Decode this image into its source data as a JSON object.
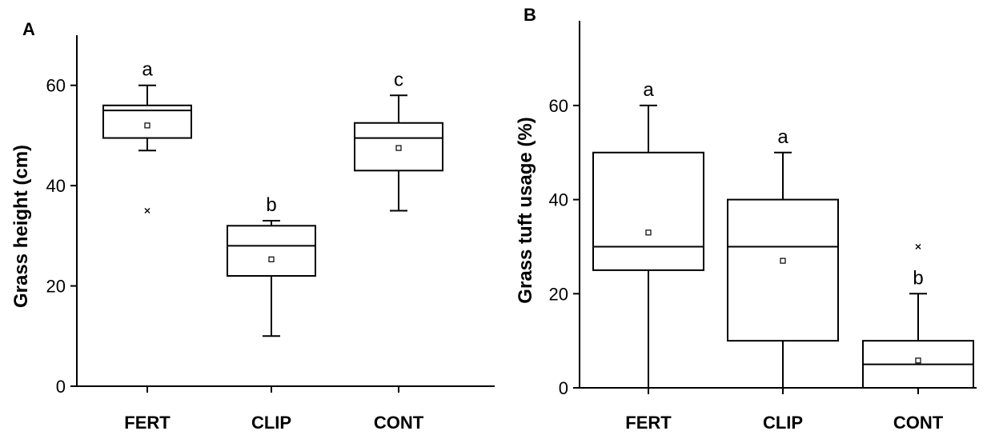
{
  "chart_data": [
    {
      "type": "box",
      "panel": "A",
      "ylabel": "Grass height (cm)",
      "xlabel": "",
      "ylim": [
        0,
        70
      ],
      "yticks": [
        0,
        20,
        40,
        60
      ],
      "grid": false,
      "categories": [
        "FERT",
        "CLIP",
        "CONT"
      ],
      "boxes": [
        {
          "category": "FERT",
          "whisker_low": 47,
          "q1": 49.5,
          "median": 55,
          "q3": 56,
          "whisker_high": 60,
          "mean": 52,
          "outliers": [
            35
          ],
          "letter": "a"
        },
        {
          "category": "CLIP",
          "whisker_low": 10,
          "q1": 22,
          "median": 28,
          "q3": 32,
          "whisker_high": 33,
          "mean": 25.3,
          "outliers": [],
          "letter": "b"
        },
        {
          "category": "CONT",
          "whisker_low": 35,
          "q1": 43,
          "median": 49.5,
          "q3": 52.5,
          "whisker_high": 58,
          "mean": 47.5,
          "outliers": [],
          "letter": "c"
        }
      ]
    },
    {
      "type": "box",
      "panel": "B",
      "ylabel": "Grass tuft usage (%)",
      "xlabel": "",
      "ylim": [
        0,
        78
      ],
      "yticks": [
        0,
        20,
        40,
        60
      ],
      "grid": false,
      "categories": [
        "FERT",
        "CLIP",
        "CONT"
      ],
      "boxes": [
        {
          "category": "FERT",
          "whisker_low": 0,
          "q1": 25,
          "median": 30,
          "q3": 50,
          "whisker_high": 60,
          "mean": 33,
          "outliers": [],
          "letter": "a"
        },
        {
          "category": "CLIP",
          "whisker_low": 0,
          "q1": 10,
          "median": 30,
          "q3": 40,
          "whisker_high": 50,
          "mean": 27,
          "outliers": [],
          "letter": "a"
        },
        {
          "category": "CONT",
          "whisker_low": 0,
          "q1": 0,
          "median": 5,
          "q3": 10,
          "whisker_high": 20,
          "mean": 5.8,
          "outliers": [
            30
          ],
          "letter": "b"
        }
      ]
    }
  ]
}
